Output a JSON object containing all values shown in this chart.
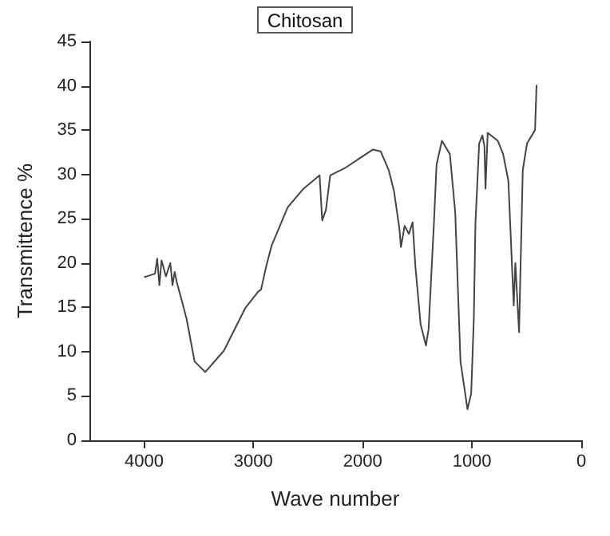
{
  "chart_data": {
    "type": "line",
    "title": "Chitosan",
    "xlabel": "Wave number",
    "ylabel": "Transmittence %",
    "x": [
      4000,
      3950,
      3900,
      3880,
      3860,
      3840,
      3800,
      3760,
      3740,
      3720,
      3700,
      3660,
      3611,
      3538,
      3440,
      3270,
      3075,
      2954,
      2930,
      2881,
      2832,
      2686,
      2540,
      2394,
      2370,
      2336,
      2297,
      2151,
      2005,
      1908,
      1835,
      1762,
      1713,
      1664,
      1650,
      1616,
      1577,
      1543,
      1518,
      1470,
      1421,
      1397,
      1348,
      1324,
      1275,
      1202,
      1153,
      1105,
      1041,
      1007,
      983,
      968,
      934,
      905,
      886,
      876,
      856,
      764,
      715,
      667,
      618,
      603,
      569,
      535,
      496,
      423,
      409
    ],
    "series": [
      {
        "color": "#444444",
        "values": [
          18.4,
          18.6,
          18.8,
          20.5,
          17.5,
          20.3,
          18.5,
          20,
          17.5,
          19,
          17.8,
          16,
          13.7,
          8.9,
          7.7,
          10.1,
          14.9,
          16.8,
          17,
          19.7,
          22,
          26.3,
          28.4,
          29.9,
          24.8,
          26,
          29.9,
          30.8,
          32,
          32.8,
          32.6,
          30.5,
          28.1,
          23.9,
          21.8,
          24.2,
          23.3,
          24.6,
          19.7,
          13.1,
          10.7,
          12.5,
          24.5,
          31.1,
          33.8,
          32.3,
          25.7,
          8.9,
          3.5,
          5.3,
          13.7,
          24.5,
          33.5,
          34.4,
          33.2,
          28.4,
          34.7,
          33.8,
          32.3,
          29.3,
          15.2,
          20,
          12.2,
          30.5,
          33.5,
          35,
          40.1
        ]
      }
    ],
    "xlim": [
      4500,
      0
    ],
    "xticks": [
      4000,
      3000,
      2000,
      1000,
      0
    ],
    "ylim": [
      0,
      45
    ],
    "yticks": [
      0,
      5,
      10,
      15,
      20,
      25,
      30,
      35,
      40,
      45
    ],
    "marker": "none",
    "line_style": "solid"
  }
}
